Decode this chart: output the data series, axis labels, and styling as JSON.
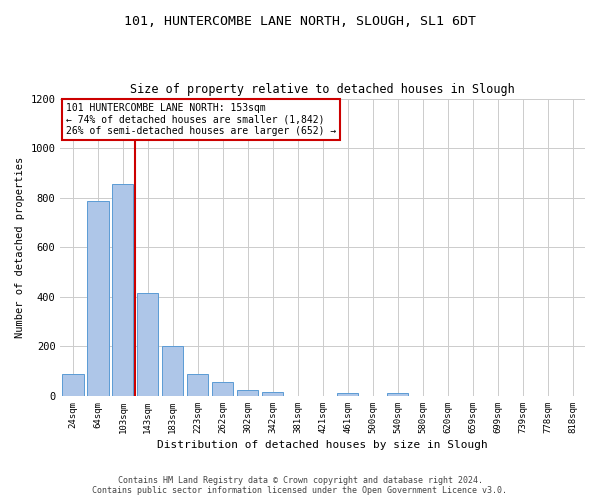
{
  "title": "101, HUNTERCOMBE LANE NORTH, SLOUGH, SL1 6DT",
  "subtitle": "Size of property relative to detached houses in Slough",
  "xlabel": "Distribution of detached houses by size in Slough",
  "ylabel": "Number of detached properties",
  "footer": "Contains HM Land Registry data © Crown copyright and database right 2024.\nContains public sector information licensed under the Open Government Licence v3.0.",
  "bar_labels": [
    "24sqm",
    "64sqm",
    "103sqm",
    "143sqm",
    "183sqm",
    "223sqm",
    "262sqm",
    "302sqm",
    "342sqm",
    "381sqm",
    "421sqm",
    "461sqm",
    "500sqm",
    "540sqm",
    "580sqm",
    "620sqm",
    "659sqm",
    "699sqm",
    "739sqm",
    "778sqm",
    "818sqm"
  ],
  "bar_heights": [
    90,
    785,
    855,
    415,
    200,
    90,
    55,
    25,
    15,
    0,
    0,
    10,
    0,
    10,
    0,
    0,
    0,
    0,
    0,
    0,
    0
  ],
  "bar_color": "#aec6e8",
  "bar_edge_color": "#5b9bd5",
  "annotation_text": "101 HUNTERCOMBE LANE NORTH: 153sqm\n← 74% of detached houses are smaller (1,842)\n26% of semi-detached houses are larger (652) →",
  "vline_x_index": 3,
  "vline_color": "#cc0000",
  "annotation_box_color": "#ffffff",
  "annotation_box_edge": "#cc0000",
  "ylim": [
    0,
    1200
  ],
  "yticks": [
    0,
    200,
    400,
    600,
    800,
    1000,
    1200
  ],
  "bg_color": "#ffffff",
  "grid_color": "#cccccc"
}
